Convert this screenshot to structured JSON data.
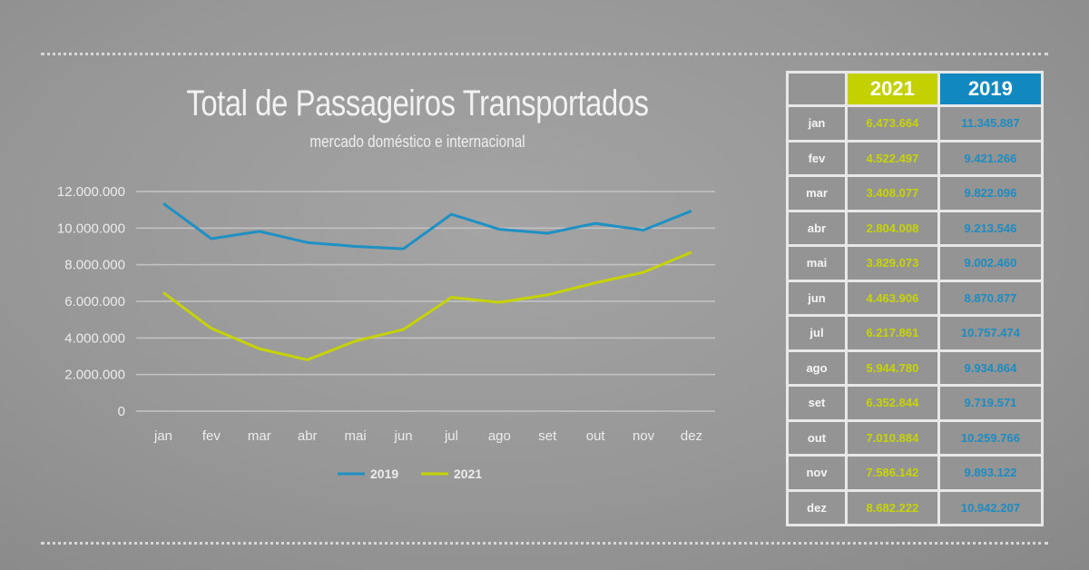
{
  "colors": {
    "2019": "#1e90c4",
    "2021": "#c6d300"
  },
  "chart_data": {
    "type": "line",
    "title": "Total de Passageiros Transportados",
    "subtitle": "mercado doméstico e internacional",
    "categories": [
      "jan",
      "fev",
      "mar",
      "abr",
      "mai",
      "jun",
      "jul",
      "ago",
      "set",
      "out",
      "nov",
      "dez"
    ],
    "yticks": [
      "0",
      "2.000.000",
      "4.000.000",
      "6.000.000",
      "8.000.000",
      "10.000.000",
      "12.000.000"
    ],
    "ylim": [
      0,
      12000000
    ],
    "grid": true,
    "legend": "bottom",
    "series": [
      {
        "name": "2019",
        "values": [
          11345887,
          9421266,
          9822096,
          9213546,
          9002460,
          8870877,
          10757474,
          9934864,
          9719571,
          10259766,
          9893122,
          10942207
        ]
      },
      {
        "name": "2021",
        "values": [
          6473664,
          4522497,
          3408077,
          2804008,
          3829073,
          4463906,
          6217861,
          5944780,
          6352844,
          7010884,
          7586142,
          8682222
        ]
      }
    ]
  },
  "table": {
    "headers": [
      "2021",
      "2019"
    ],
    "rows": [
      [
        "jan",
        "6.473.664",
        "11.345.887"
      ],
      [
        "fev",
        "4.522.497",
        "9.421.266"
      ],
      [
        "mar",
        "3.408.077",
        "9.822.096"
      ],
      [
        "abr",
        "2.804.008",
        "9.213.546"
      ],
      [
        "mai",
        "3.829.073",
        "9.002.460"
      ],
      [
        "jun",
        "4.463.906",
        "8.870.877"
      ],
      [
        "jul",
        "6.217.861",
        "10.757.474"
      ],
      [
        "ago",
        "5.944.780",
        "9.934.864"
      ],
      [
        "set",
        "6.352.844",
        "9.719.571"
      ],
      [
        "out",
        "7.010.884",
        "10.259.766"
      ],
      [
        "nov",
        "7.586.142",
        "9.893.122"
      ],
      [
        "dez",
        "8.682.222",
        "10.942.207"
      ]
    ]
  }
}
